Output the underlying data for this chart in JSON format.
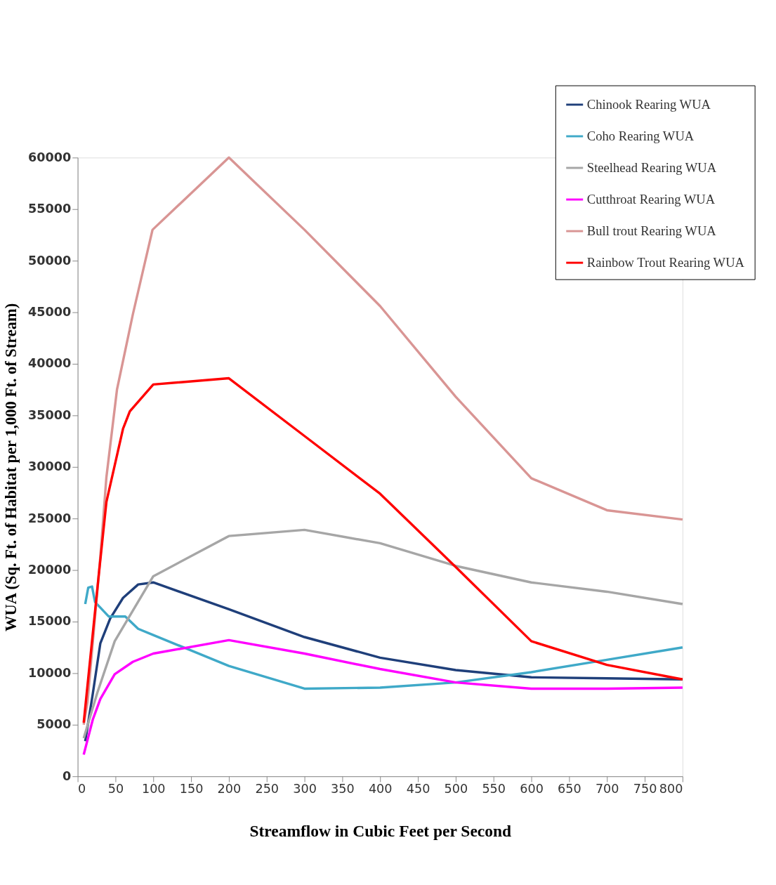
{
  "chart_data": {
    "type": "line",
    "xlabel": "Streamflow in Cubic Feet per Second",
    "ylabel": "WUA (Sq. Ft. of Habitat per 1,000 Ft. of Stream)",
    "xlim": [
      0,
      800
    ],
    "xticks": [
      0,
      50,
      100,
      150,
      200,
      250,
      300,
      350,
      400,
      450,
      500,
      550,
      600,
      650,
      700,
      750,
      800
    ],
    "ylim": [
      0,
      60000
    ],
    "yticks": [
      0,
      5000,
      10000,
      15000,
      20000,
      25000,
      30000,
      35000,
      40000,
      45000,
      50000,
      55000,
      60000
    ],
    "grid": false,
    "legend": "top right",
    "marker": "none",
    "line_style": "solid",
    "series": [
      {
        "name": "Chinook Rearing WUA",
        "color": "#1f3f7a",
        "x": [
          10,
          20,
          30,
          43,
          60,
          80,
          100,
          200,
          300,
          400,
          500,
          600,
          700,
          800
        ],
        "values": [
          3400,
          8000,
          12900,
          15300,
          17300,
          18600,
          18800,
          16200,
          13500,
          11500,
          10300,
          9600,
          9500,
          9400
        ]
      },
      {
        "name": "Coho Rearing WUA",
        "color": "#3fa9c8",
        "x": [
          10,
          14,
          19,
          23,
          41,
          63,
          80,
          100,
          200,
          300,
          400,
          500,
          600,
          700,
          800
        ],
        "values": [
          16700,
          18300,
          18400,
          16900,
          15500,
          15500,
          14300,
          13700,
          10700,
          8500,
          8600,
          9100,
          10100,
          11300,
          12500
        ]
      },
      {
        "name": "Steelhead Rearing WUA",
        "color": "#a6a6a6",
        "x": [
          8,
          26,
          49,
          100,
          200,
          300,
          400,
          500,
          600,
          700,
          800
        ],
        "values": [
          3700,
          8100,
          13100,
          19400,
          23300,
          23900,
          22600,
          20400,
          18800,
          17900,
          16700
        ]
      },
      {
        "name": "Cutthroat Rearing WUA",
        "color": "#ff00ff",
        "x": [
          8,
          20,
          30,
          49,
          73,
          100,
          200,
          300,
          400,
          500,
          600,
          700,
          800
        ],
        "values": [
          2100,
          5500,
          7500,
          9900,
          11100,
          11900,
          13200,
          11900,
          10400,
          9100,
          8500,
          8500,
          8600
        ]
      },
      {
        "name": "Bull trout Rearing WUA",
        "color": "#d99594",
        "x": [
          8,
          13,
          30,
          38,
          52,
          73,
          99,
          200,
          300,
          400,
          500,
          600,
          700,
          800
        ],
        "values": [
          5000,
          7200,
          21300,
          29000,
          37500,
          44800,
          53000,
          60000,
          53000,
          45600,
          36800,
          28900,
          25800,
          24900
        ]
      },
      {
        "name": "Rainbow Trout Rearing WUA",
        "color": "#ff0000",
        "x": [
          8,
          28,
          38,
          60,
          69,
          100,
          200,
          300,
          400,
          500,
          600,
          700,
          800
        ],
        "values": [
          5200,
          19600,
          26600,
          33700,
          35400,
          38000,
          38600,
          33000,
          27400,
          20300,
          13100,
          10800,
          9400
        ]
      }
    ]
  }
}
